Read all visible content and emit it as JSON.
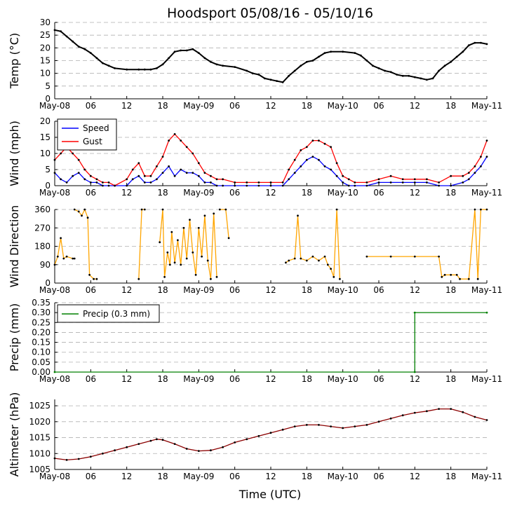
{
  "figure_title": "Hoodsport 05/08/16 - 05/10/16",
  "x_axis_label": "Time (UTC)",
  "colors": {
    "temp": "#000000",
    "speed": "#0000ff",
    "gust": "#ff0000",
    "direction_line": "#ffa500",
    "direction_points": "#000000",
    "precip": "#008000",
    "altimeter_line": "#8b0000",
    "altimeter_points": "#000000",
    "grid": "#b0b0b0"
  },
  "chart_data": [
    {
      "id": "temp",
      "type": "line",
      "ylabel": "Temp ($^\\circ$C)",
      "ylabel_text": "Temp (°C)",
      "xlim": [
        0,
        72
      ],
      "ylim": [
        0,
        30
      ],
      "x_ticks": [
        0,
        6,
        12,
        18,
        24,
        30,
        36,
        42,
        48,
        54,
        60,
        66,
        72
      ],
      "x_tick_labels": [
        "May-08",
        "06",
        "12",
        "18",
        "May-09",
        "06",
        "12",
        "18",
        "May-10",
        "06",
        "12",
        "18",
        "May-11"
      ],
      "y_ticks": [
        0,
        5,
        10,
        15,
        20,
        25,
        30
      ],
      "y_tick_labels": [
        "0",
        "5",
        "10",
        "15",
        "20",
        "25",
        "30"
      ],
      "series": [
        {
          "name": "Temp",
          "x": [
            0,
            1,
            2,
            3,
            4,
            5,
            6,
            7,
            8,
            9,
            10,
            12,
            14,
            15,
            16,
            17,
            18,
            19,
            20,
            21,
            22,
            23,
            24,
            25,
            26,
            27,
            28,
            30,
            32,
            33,
            34,
            35,
            36,
            37,
            38,
            39,
            40,
            41,
            42,
            43,
            44,
            45,
            46,
            48,
            50,
            51,
            52,
            53,
            54,
            55,
            56,
            57,
            58,
            59,
            60,
            61,
            62,
            63,
            64,
            65,
            66,
            67,
            68,
            69,
            70,
            71,
            72
          ],
          "y": [
            27,
            26.5,
            24.5,
            22.5,
            20.5,
            19.5,
            18,
            16,
            14,
            13,
            12,
            11.5,
            11.5,
            11.5,
            11.5,
            12,
            13.5,
            16,
            18.5,
            19,
            19,
            19.5,
            18,
            16,
            14.5,
            13.5,
            13,
            12.5,
            11,
            10,
            9.5,
            8,
            7.5,
            7,
            6.5,
            9,
            11,
            13,
            14.5,
            15,
            16.5,
            18,
            18.5,
            18.5,
            18,
            17,
            15,
            13,
            12,
            11,
            10.5,
            9.5,
            9,
            9,
            8.5,
            8,
            7.5,
            8,
            11,
            13,
            14.5,
            16.5,
            18.5,
            21,
            22,
            22,
            21.5
          ]
        }
      ]
    },
    {
      "id": "wind",
      "type": "line",
      "ylabel": "Wind (mph)",
      "xlim": [
        0,
        72
      ],
      "ylim": [
        0,
        20
      ],
      "x_ticks": [
        0,
        6,
        12,
        18,
        24,
        30,
        36,
        42,
        48,
        54,
        60,
        66,
        72
      ],
      "x_tick_labels": [
        "May-08",
        "06",
        "12",
        "18",
        "May-09",
        "06",
        "12",
        "18",
        "May-10",
        "06",
        "12",
        "18",
        "May-11"
      ],
      "y_ticks": [
        0,
        5,
        10,
        15,
        20
      ],
      "y_tick_labels": [
        "0",
        "5",
        "10",
        "15",
        "20"
      ],
      "legend": {
        "position": "top-left",
        "entries": [
          "Speed",
          "Gust"
        ]
      },
      "series": [
        {
          "name": "Speed",
          "x": [
            0,
            1,
            2,
            3,
            4,
            5,
            6,
            7,
            8,
            9,
            10,
            12,
            13,
            14,
            15,
            16,
            17,
            18,
            19,
            20,
            21,
            22,
            23,
            24,
            25,
            26,
            27,
            28,
            30,
            32,
            34,
            36,
            38,
            39,
            40,
            41,
            42,
            43,
            44,
            45,
            46,
            47,
            48,
            49,
            50,
            52,
            54,
            56,
            58,
            60,
            62,
            64,
            66,
            68,
            69,
            70,
            71,
            72
          ],
          "y": [
            4,
            2,
            1,
            3,
            4,
            2,
            1,
            1,
            0,
            0,
            0,
            0,
            2,
            3,
            1,
            1,
            2,
            4,
            6,
            3,
            5,
            4,
            4,
            3,
            1,
            1,
            0,
            0,
            0,
            0,
            0,
            0,
            0,
            2,
            4,
            6,
            8,
            9,
            8,
            6,
            5,
            3,
            1,
            0,
            0,
            0,
            1,
            1,
            1,
            1,
            1,
            0,
            0,
            1,
            2,
            4,
            6,
            9
          ]
        },
        {
          "name": "Gust",
          "x": [
            0,
            1,
            2,
            3,
            4,
            5,
            6,
            7,
            8,
            9,
            10,
            12,
            13,
            14,
            15,
            16,
            17,
            18,
            19,
            20,
            21,
            22,
            23,
            24,
            25,
            26,
            27,
            28,
            30,
            32,
            34,
            36,
            38,
            39,
            40,
            41,
            42,
            43,
            44,
            45,
            46,
            47,
            48,
            49,
            50,
            52,
            54,
            56,
            58,
            60,
            62,
            64,
            66,
            68,
            69,
            70,
            71,
            72
          ],
          "y": [
            8,
            10,
            12,
            10,
            8,
            5,
            3,
            2,
            1,
            1,
            0,
            2,
            5,
            7,
            3,
            3,
            6,
            9,
            14,
            16,
            14,
            12,
            10,
            7,
            4,
            3,
            2,
            2,
            1,
            1,
            1,
            1,
            1,
            5,
            8,
            11,
            12,
            14,
            14,
            13,
            12,
            7,
            3,
            2,
            1,
            1,
            2,
            3,
            2,
            2,
            2,
            1,
            3,
            3,
            4,
            6,
            9,
            14
          ]
        }
      ]
    },
    {
      "id": "direction",
      "type": "line",
      "ylabel": "Wind Direction",
      "xlim": [
        0,
        72
      ],
      "ylim": [
        0,
        360
      ],
      "x_ticks": [
        0,
        6,
        12,
        18,
        24,
        30,
        36,
        42,
        48,
        54,
        60,
        66,
        72
      ],
      "x_tick_labels": [
        "May-08",
        "06",
        "12",
        "18",
        "May-09",
        "06",
        "12",
        "18",
        "May-10",
        "06",
        "12",
        "18",
        "May-11"
      ],
      "y_ticks": [
        0,
        90,
        180,
        270,
        360
      ],
      "y_tick_labels": [
        "0",
        "90",
        "180",
        "270",
        "360"
      ],
      "series": [
        {
          "name": "Direction",
          "segments": [
            [
              [
                0,
                90
              ],
              [
                0.5,
                130
              ],
              [
                1,
                220
              ],
              [
                1.5,
                120
              ],
              [
                2,
                130
              ],
              [
                3,
                120
              ],
              [
                3.3,
                120
              ]
            ],
            [
              [
                3.3,
                360
              ],
              [
                4,
                350
              ],
              [
                4.5,
                330
              ],
              [
                5,
                360
              ],
              [
                5.5,
                320
              ],
              [
                5.8,
                40
              ],
              [
                6.5,
                20
              ],
              [
                7,
                20
              ]
            ],
            [
              [
                14,
                20
              ],
              [
                14.5,
                360
              ],
              [
                15,
                360
              ]
            ],
            [
              [
                17.5,
                200
              ],
              [
                18,
                360
              ],
              [
                18.3,
                30
              ],
              [
                18.8,
                150
              ],
              [
                19.2,
                90
              ],
              [
                19.5,
                250
              ],
              [
                20,
                100
              ],
              [
                20.5,
                210
              ],
              [
                21,
                90
              ],
              [
                21.5,
                270
              ],
              [
                22,
                120
              ],
              [
                22.5,
                310
              ],
              [
                23,
                150
              ],
              [
                23.5,
                40
              ],
              [
                24,
                270
              ],
              [
                24.5,
                130
              ],
              [
                25,
                330
              ],
              [
                25.5,
                110
              ],
              [
                26,
                20
              ],
              [
                26.5,
                340
              ],
              [
                27,
                30
              ]
            ],
            [
              [
                27.5,
                360
              ],
              [
                28.5,
                360
              ],
              [
                29,
                220
              ]
            ],
            [
              [
                38.5,
                100
              ],
              [
                39,
                110
              ],
              [
                40,
                120
              ],
              [
                40.5,
                330
              ],
              [
                41,
                120
              ],
              [
                42,
                110
              ],
              [
                43,
                130
              ],
              [
                44,
                110
              ],
              [
                45,
                130
              ],
              [
                45.5,
                90
              ],
              [
                46,
                70
              ],
              [
                46.5,
                30
              ],
              [
                47,
                360
              ],
              [
                47.5,
                20
              ]
            ],
            [
              [
                52,
                130
              ],
              [
                56,
                130
              ],
              [
                60,
                130
              ],
              [
                64,
                130
              ],
              [
                64.5,
                30
              ],
              [
                65,
                40
              ],
              [
                66,
                40
              ],
              [
                67,
                40
              ],
              [
                67.5,
                20
              ],
              [
                69,
                20
              ],
              [
                70,
                360
              ],
              [
                70.5,
                20
              ],
              [
                71,
                360
              ],
              [
                72,
                360
              ]
            ]
          ]
        }
      ]
    },
    {
      "id": "precip",
      "type": "line",
      "ylabel": "Precip (mm)",
      "xlim": [
        0,
        72
      ],
      "ylim": [
        0,
        0.35
      ],
      "x_ticks": [
        0,
        6,
        12,
        18,
        24,
        30,
        36,
        42,
        48,
        54,
        60,
        66,
        72
      ],
      "x_tick_labels": [
        "May-08",
        "06",
        "12",
        "18",
        "May-09",
        "06",
        "12",
        "18",
        "May-10",
        "06",
        "12",
        "18",
        "May-11"
      ],
      "y_ticks": [
        0,
        0.05,
        0.1,
        0.15,
        0.2,
        0.25,
        0.3,
        0.35
      ],
      "y_tick_labels": [
        "0.00",
        "0.05",
        "0.10",
        "0.15",
        "0.20",
        "0.25",
        "0.30",
        "0.35"
      ],
      "legend": {
        "position": "top-left",
        "entries": [
          "Precip (0.3 mm)"
        ]
      },
      "series": [
        {
          "name": "Precip (0.3 mm)",
          "x": [
            0,
            60,
            60,
            72
          ],
          "y": [
            0,
            0,
            0.3,
            0.3
          ]
        }
      ]
    },
    {
      "id": "altimeter",
      "type": "line",
      "ylabel": "Altimeter (hPa)",
      "xlabel": "Time (UTC)",
      "xlim": [
        0,
        72
      ],
      "ylim": [
        1005,
        1027
      ],
      "x_ticks": [
        0,
        6,
        12,
        18,
        24,
        30,
        36,
        42,
        48,
        54,
        60,
        66,
        72
      ],
      "x_tick_labels": [
        "May-08",
        "06",
        "12",
        "18",
        "May-09",
        "06",
        "12",
        "18",
        "May-10",
        "06",
        "12",
        "18",
        "May-11"
      ],
      "y_ticks": [
        1005,
        1010,
        1015,
        1020,
        1025
      ],
      "y_tick_labels": [
        "1005",
        "1010",
        "1015",
        "1020",
        "1025"
      ],
      "series": [
        {
          "name": "Altimeter",
          "x": [
            0,
            2,
            4,
            6,
            8,
            10,
            12,
            14,
            16,
            17,
            18,
            20,
            22,
            24,
            26,
            28,
            30,
            32,
            34,
            36,
            38,
            40,
            42,
            44,
            46,
            48,
            50,
            52,
            54,
            56,
            58,
            60,
            62,
            64,
            66,
            68,
            70,
            72
          ],
          "y": [
            1008.5,
            1008,
            1008.3,
            1009,
            1010,
            1011,
            1012,
            1013,
            1014,
            1014.5,
            1014.3,
            1013,
            1011.5,
            1010.8,
            1011,
            1012,
            1013.5,
            1014.5,
            1015.5,
            1016.5,
            1017.5,
            1018.5,
            1019,
            1019,
            1018.5,
            1018,
            1018.5,
            1019,
            1020,
            1021,
            1022,
            1022.8,
            1023.3,
            1024,
            1024,
            1023,
            1021.5,
            1020.5
          ]
        }
      ]
    }
  ]
}
